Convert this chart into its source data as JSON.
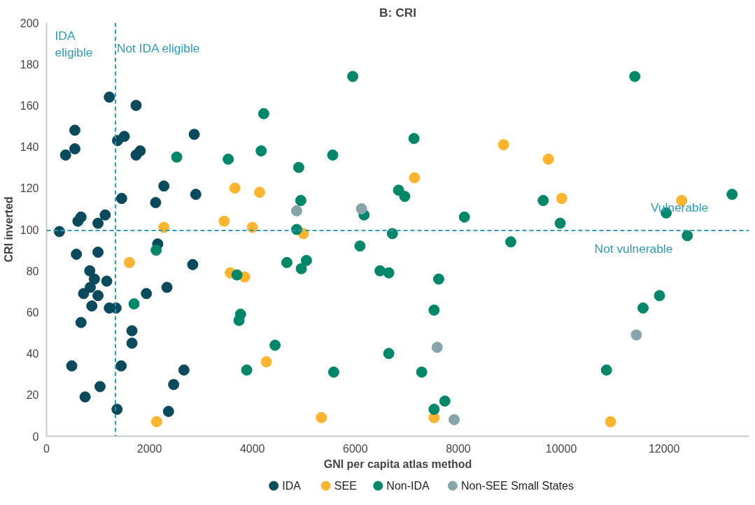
{
  "chart_data": {
    "type": "scatter",
    "title": "B: CRI",
    "xlabel": "GNI per capita atlas method",
    "ylabel": "CRI inverted",
    "xlim": [
      0,
      13650
    ],
    "ylim": [
      0,
      200
    ],
    "xticks": [
      0,
      2000,
      4000,
      6000,
      8000,
      10000,
      12000
    ],
    "yticks": [
      0,
      20,
      40,
      60,
      80,
      100,
      120,
      140,
      160,
      180,
      200
    ],
    "grid": false,
    "legend": "bottom",
    "marker": "circle",
    "series": [
      {
        "name": "IDA",
        "color": "#0b4a5c",
        "x": [
          1220,
          1740,
          550,
          550,
          370,
          1380,
          1510,
          1740,
          1820,
          2870,
          2280,
          2900,
          2120,
          1460,
          610,
          670,
          1140,
          1000,
          250,
          2160,
          580,
          1000,
          2840,
          840,
          930,
          850,
          1170,
          720,
          1000,
          880,
          1220,
          1350,
          1940,
          2340,
          670,
          1660,
          1660,
          490,
          1450,
          2670,
          1040,
          2470,
          750,
          1370,
          2370
        ],
        "values": [
          164,
          160,
          148,
          139,
          136,
          143,
          145,
          136,
          138,
          146,
          121,
          117,
          113,
          115,
          104,
          106,
          107,
          103,
          99,
          93,
          88,
          89,
          83,
          80,
          76,
          72,
          75,
          69,
          68,
          63,
          62,
          62,
          69,
          72,
          55,
          51,
          45,
          34,
          34,
          32,
          24,
          25,
          19,
          13,
          12
        ]
      },
      {
        "name": "SEE",
        "color": "#fdb52f",
        "x": [
          2280,
          3450,
          4000,
          3660,
          1610,
          3570,
          3850,
          2140,
          8880,
          9750,
          10010,
          12340,
          10960,
          4140,
          7150,
          4990,
          4270,
          5340,
          7530
        ],
        "values": [
          101,
          104,
          101,
          120,
          84,
          79,
          77,
          7,
          141,
          134,
          115,
          114,
          7,
          118,
          125,
          98,
          36,
          9,
          9
        ]
      },
      {
        "name": "Non-IDA",
        "color": "#00876a",
        "x": [
          2530,
          3530,
          2130,
          1700,
          3700,
          3770,
          3740,
          3890,
          5950,
          4220,
          4170,
          5560,
          4900,
          7140,
          4940,
          6840,
          6960,
          6170,
          8120,
          4860,
          6720,
          6090,
          4670,
          5050,
          4950,
          6480,
          6650,
          7620,
          7530,
          4440,
          6650,
          5580,
          7290,
          7740,
          7530,
          11430,
          13320,
          9650,
          12040,
          9980,
          9020,
          12450,
          11910,
          11590,
          10880
        ],
        "values": [
          135,
          134,
          90,
          64,
          78,
          59,
          56,
          32,
          174,
          156,
          138,
          136,
          130,
          144,
          114,
          119,
          116,
          107,
          106,
          100,
          98,
          92,
          84,
          85,
          81,
          80,
          79,
          76,
          61,
          44,
          40,
          31,
          31,
          17,
          13,
          174,
          117,
          114,
          108,
          103,
          94,
          97,
          68,
          62,
          32
        ]
      },
      {
        "name": "Non-SEE Small States",
        "color": "#87a4ab",
        "x": [
          4860,
          6120,
          7590,
          7920,
          11460
        ],
        "values": [
          109,
          110,
          43,
          8,
          49
        ]
      }
    ],
    "ref_lines": [
      {
        "axis": "x",
        "value": 1340,
        "color": "#2c9bb8",
        "line_style": "dashed"
      },
      {
        "axis": "y",
        "value": 99.5,
        "color": "#2c9bb8",
        "line_style": "dashed"
      }
    ],
    "annotations": [
      "IDA\neligible",
      "Not IDA eligible",
      "Vulnerable",
      "Not vulnerable"
    ]
  }
}
